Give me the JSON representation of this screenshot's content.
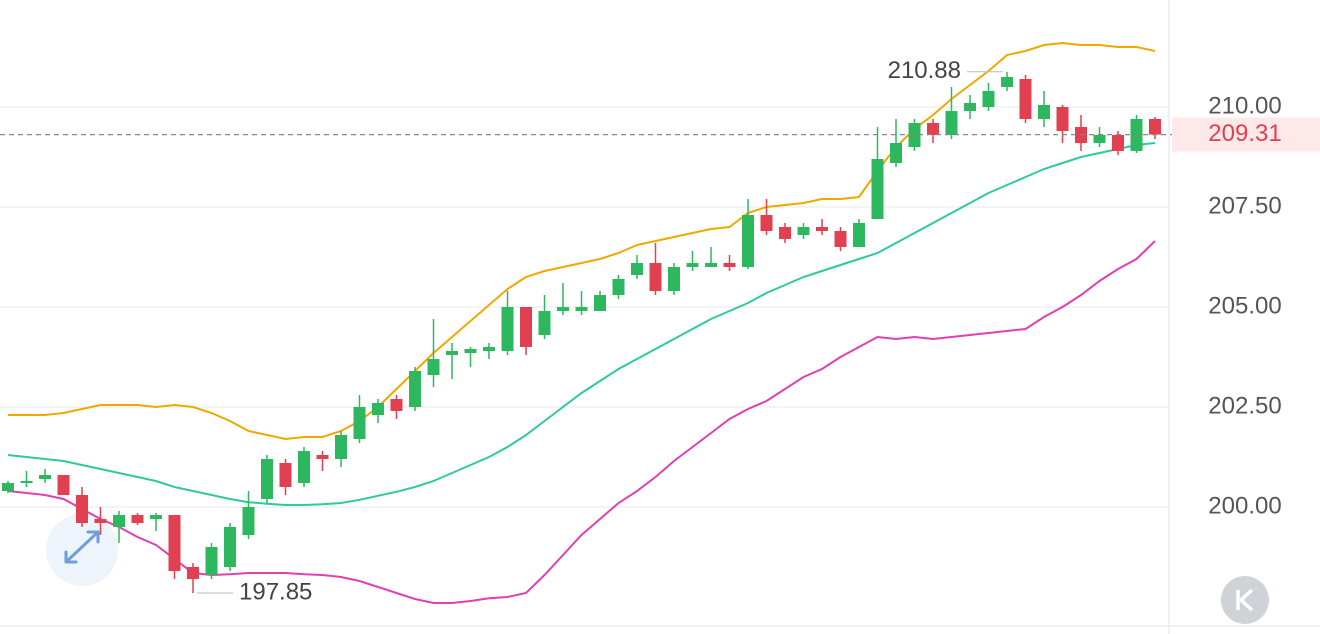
{
  "chart_data": {
    "type": "candlestick",
    "ylim": [
      197.05,
      212.675
    ],
    "yticks": [
      {
        "value": 200,
        "label": "200.00"
      },
      {
        "value": 202.5,
        "label": "202.50"
      },
      {
        "value": 205,
        "label": "205.00"
      },
      {
        "value": 207.5,
        "label": "207.50"
      },
      {
        "value": 210,
        "label": "210.00"
      }
    ],
    "grid": true,
    "up_color": "#2db85f",
    "down_color": "#e0404f",
    "open": [
      200.4,
      200.6,
      200.7,
      200.8,
      200.3,
      199.7,
      199.5,
      199.8,
      199.7,
      199.8,
      198.5,
      198.3,
      198.5,
      199.3,
      200.2,
      201.1,
      200.6,
      201.3,
      201.2,
      201.7,
      202.3,
      202.7,
      202.5,
      203.3,
      203.8,
      203.85,
      203.9,
      203.9,
      205.0,
      204.3,
      204.9,
      204.9,
      204.9,
      205.3,
      205.8,
      206.1,
      205.4,
      206.0,
      206.0,
      206.1,
      206.0,
      207.3,
      207.0,
      206.8,
      207.0,
      206.9,
      206.5,
      207.2,
      208.6,
      209.0,
      209.6,
      209.3,
      209.9,
      210.0,
      210.5,
      210.7,
      209.7,
      210.0,
      209.5,
      209.1,
      209.3,
      208.9,
      209.7
    ],
    "high": [
      200.65,
      200.9,
      200.95,
      200.8,
      200.5,
      200.0,
      199.9,
      199.85,
      199.85,
      199.8,
      198.6,
      199.1,
      199.6,
      200.4,
      201.3,
      201.2,
      201.5,
      201.4,
      201.9,
      202.8,
      202.7,
      202.8,
      203.5,
      204.7,
      204.1,
      204.0,
      204.1,
      205.4,
      205.0,
      205.3,
      205.6,
      205.4,
      205.4,
      205.8,
      206.3,
      206.6,
      206.1,
      206.4,
      206.5,
      206.3,
      207.7,
      207.7,
      207.1,
      207.1,
      207.2,
      207.0,
      207.2,
      209.5,
      209.7,
      209.7,
      209.7,
      210.5,
      210.3,
      210.6,
      210.88,
      210.8,
      210.4,
      210.05,
      209.8,
      209.5,
      209.4,
      209.8,
      209.75
    ],
    "low": [
      200.35,
      200.5,
      200.6,
      200.3,
      199.5,
      199.3,
      199.1,
      199.55,
      199.4,
      198.2,
      197.85,
      198.2,
      198.4,
      199.2,
      200.1,
      200.3,
      200.5,
      200.9,
      201.0,
      201.6,
      202.1,
      202.2,
      202.4,
      203.0,
      203.2,
      203.5,
      203.7,
      203.8,
      203.8,
      204.2,
      204.8,
      204.8,
      204.9,
      205.2,
      205.7,
      205.3,
      205.3,
      205.9,
      206.0,
      205.9,
      205.95,
      206.8,
      206.6,
      206.7,
      206.8,
      206.4,
      206.5,
      207.2,
      208.5,
      208.9,
      209.1,
      209.2,
      209.7,
      209.9,
      210.4,
      209.6,
      209.5,
      209.1,
      208.9,
      209.0,
      208.8,
      208.85,
      209.2
    ],
    "close": [
      200.6,
      200.65,
      200.8,
      200.3,
      199.6,
      199.6,
      199.8,
      199.6,
      199.8,
      198.4,
      198.2,
      199.0,
      199.5,
      200.0,
      201.2,
      200.5,
      201.4,
      201.2,
      201.8,
      202.5,
      202.6,
      202.4,
      203.4,
      203.7,
      203.9,
      203.95,
      204.0,
      205.0,
      204.0,
      204.9,
      205.0,
      205.0,
      205.3,
      205.7,
      206.1,
      205.4,
      206.0,
      206.1,
      206.1,
      206.0,
      207.3,
      206.9,
      206.7,
      207.0,
      206.9,
      206.5,
      207.1,
      208.7,
      209.1,
      209.6,
      209.3,
      209.9,
      210.1,
      210.4,
      210.75,
      209.7,
      210.05,
      209.4,
      209.1,
      209.3,
      208.9,
      209.7,
      209.31
    ],
    "bands": [
      {
        "color": "#f0a800",
        "values": [
          202.3,
          202.3,
          202.3,
          202.35,
          202.45,
          202.55,
          202.55,
          202.55,
          202.5,
          202.55,
          202.5,
          202.35,
          202.15,
          201.9,
          201.8,
          201.7,
          201.75,
          201.75,
          201.9,
          202.15,
          202.5,
          202.95,
          203.4,
          203.85,
          204.25,
          204.65,
          205.05,
          205.45,
          205.75,
          205.9,
          206.0,
          206.1,
          206.2,
          206.35,
          206.55,
          206.65,
          206.75,
          206.85,
          206.95,
          207.0,
          207.35,
          207.5,
          207.55,
          207.6,
          207.7,
          207.7,
          207.75,
          208.4,
          209.0,
          209.45,
          209.8,
          210.2,
          210.55,
          210.9,
          211.3,
          211.4,
          211.55,
          211.6,
          211.55,
          211.55,
          211.5,
          211.5,
          211.4
        ]
      },
      {
        "color": "#2ec9a0",
        "values": [
          201.3,
          201.25,
          201.2,
          201.15,
          201.05,
          200.95,
          200.85,
          200.75,
          200.65,
          200.5,
          200.4,
          200.3,
          200.2,
          200.12,
          200.08,
          200.05,
          200.05,
          200.07,
          200.1,
          200.18,
          200.28,
          200.38,
          200.5,
          200.65,
          200.85,
          201.05,
          201.25,
          201.5,
          201.8,
          202.15,
          202.5,
          202.85,
          203.15,
          203.45,
          203.7,
          203.95,
          204.2,
          204.45,
          204.7,
          204.9,
          205.1,
          205.35,
          205.55,
          205.75,
          205.9,
          206.05,
          206.2,
          206.35,
          206.6,
          206.85,
          207.1,
          207.35,
          207.6,
          207.85,
          208.05,
          208.25,
          208.45,
          208.6,
          208.75,
          208.85,
          208.95,
          209.05,
          209.1
        ]
      },
      {
        "color": "#e040b0",
        "values": [
          200.4,
          200.35,
          200.3,
          200.2,
          199.95,
          199.7,
          199.5,
          199.25,
          199.05,
          198.7,
          198.35,
          198.3,
          198.32,
          198.35,
          198.35,
          198.35,
          198.32,
          198.3,
          198.25,
          198.15,
          198.0,
          197.85,
          197.7,
          197.6,
          197.6,
          197.65,
          197.72,
          197.75,
          197.85,
          198.3,
          198.8,
          199.3,
          199.7,
          200.1,
          200.4,
          200.75,
          201.15,
          201.5,
          201.85,
          202.2,
          202.45,
          202.65,
          202.95,
          203.25,
          203.45,
          203.75,
          204.0,
          204.25,
          204.2,
          204.25,
          204.2,
          204.25,
          204.3,
          204.35,
          204.4,
          204.45,
          204.75,
          205.0,
          205.3,
          205.65,
          205.95,
          206.2,
          206.65
        ]
      }
    ],
    "high_label": 210.88,
    "low_label": 197.85,
    "last_price": 209.31,
    "last_price_color": "#e0404f"
  }
}
